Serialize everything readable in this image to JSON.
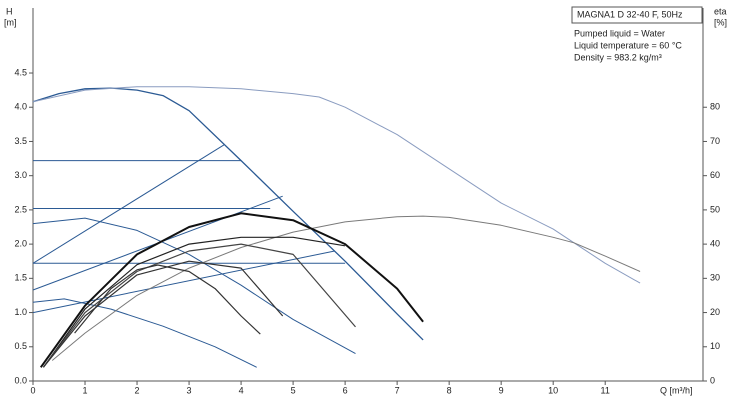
{
  "chart_data": {
    "type": "line",
    "title": "MAGNA1 D 32-40 F, 50Hz",
    "annotations": [
      "Pumped liquid = Water",
      "Liquid temperature = 60 °C",
      "Density = 983.2 kg/m³"
    ],
    "x_label": "Q [m³/h]",
    "y_label": [
      "H",
      "[m]"
    ],
    "y2_label": [
      "eta",
      "[%]"
    ],
    "xlim": [
      0,
      12.88
    ],
    "xticks": [
      0,
      1,
      2,
      3,
      4,
      5,
      6,
      7,
      8,
      9,
      10,
      11
    ],
    "ylim": [
      0,
      5.45
    ],
    "yticks": [
      {
        "value": 0,
        "label": "0.0"
      },
      0.5,
      {
        "value": 1,
        "label": "1.0"
      },
      1.5,
      {
        "value": 2,
        "label": "2.0"
      },
      2.5,
      {
        "value": 3,
        "label": "3.0"
      },
      3.5,
      {
        "value": 4,
        "label": "4.0"
      },
      4.5
    ],
    "y2lim": [
      0,
      109
    ],
    "y2ticks": [
      0,
      10,
      20,
      30,
      40,
      50,
      60,
      70,
      80
    ],
    "series": [
      {
        "color": "#2b5a94",
        "width": 1.3,
        "x": [
          0,
          0.5,
          1,
          1.5,
          2,
          2.5,
          3,
          4,
          5,
          6,
          7,
          7.5
        ],
        "values": [
          4.08,
          4.2,
          4.27,
          4.28,
          4.25,
          4.17,
          3.95,
          3.22,
          2.48,
          1.75,
          0.98,
          0.6
        ]
      },
      {
        "color": "#8a9cc0",
        "width": 1,
        "x": [
          0,
          1,
          2,
          3,
          4,
          5,
          5.5,
          6,
          7,
          8,
          9,
          10,
          10.4,
          11,
          11.67
        ],
        "values": [
          4.08,
          4.25,
          4.3,
          4.3,
          4.27,
          4.2,
          4.15,
          4.0,
          3.6,
          3.1,
          2.6,
          2.22,
          2.02,
          1.72,
          1.43
        ]
      },
      {
        "color": "#2b5a94",
        "width": 1,
        "x": [
          0,
          4
        ],
        "values": [
          3.22,
          3.22
        ]
      },
      {
        "color": "#2b5a94",
        "width": 1,
        "x": [
          0,
          4.56
        ],
        "values": [
          2.52,
          2.52
        ]
      },
      {
        "color": "#2b5a94",
        "width": 1,
        "x": [
          0,
          6
        ],
        "values": [
          1.72,
          1.72
        ]
      },
      {
        "color": "#2b5a94",
        "width": 1,
        "x": [
          0,
          3.67
        ],
        "values": [
          1.72,
          3.45
        ]
      },
      {
        "color": "#2b5a94",
        "width": 1,
        "x": [
          0,
          4.8
        ],
        "values": [
          1.33,
          2.7
        ]
      },
      {
        "color": "#2b5a94",
        "width": 1,
        "x": [
          0,
          5.8
        ],
        "values": [
          1.0,
          1.9
        ]
      },
      {
        "color": "#2b5a94",
        "width": 1,
        "x": [
          0,
          1,
          2,
          3,
          4,
          5,
          6.2
        ],
        "values": [
          2.3,
          2.38,
          2.2,
          1.85,
          1.4,
          0.9,
          0.4
        ]
      },
      {
        "color": "#2b5a94",
        "width": 1,
        "x": [
          0,
          0.6,
          1.5,
          2.5,
          3.5,
          4.3
        ],
        "values": [
          1.15,
          1.2,
          1.05,
          0.8,
          0.5,
          0.2
        ]
      },
      {
        "color": "#7a7a7a",
        "width": 1,
        "axis": "y2",
        "x": [
          0.37,
          1,
          2,
          3,
          4,
          5,
          6,
          7,
          7.5,
          8,
          9,
          10,
          10.4,
          11,
          11.67
        ],
        "values": [
          6,
          14,
          25,
          33,
          39,
          43.5,
          46.5,
          48,
          48.2,
          47.8,
          45.5,
          42,
          40.4,
          36.5,
          32
        ]
      },
      {
        "color": "#111111",
        "width": 2,
        "axis": "y2",
        "x": [
          0.15,
          1,
          2,
          3,
          4,
          5,
          6,
          7,
          7.5
        ],
        "values": [
          4,
          22,
          37,
          45,
          49,
          47,
          40,
          27,
          17.3
        ]
      },
      {
        "color": "#222222",
        "width": 1.2,
        "axis": "y2",
        "x": [
          0.2,
          1,
          2,
          3,
          4,
          5,
          6
        ],
        "values": [
          4,
          21,
          34,
          40,
          42,
          42,
          39.5
        ]
      },
      {
        "color": "#444444",
        "width": 1.2,
        "axis": "y2",
        "x": [
          0.2,
          1,
          2,
          3,
          4,
          5,
          6.2
        ],
        "values": [
          4,
          20,
          32,
          38,
          40,
          37,
          15.8
        ]
      },
      {
        "color": "#333333",
        "width": 1.2,
        "axis": "y2",
        "x": [
          0.2,
          1,
          2,
          3,
          4,
          4.8
        ],
        "values": [
          4,
          19,
          31,
          35,
          33,
          19
        ]
      },
      {
        "color": "#333333",
        "width": 1.2,
        "axis": "y2",
        "x": [
          0.8,
          1.5,
          2,
          2.4,
          3,
          3.5,
          4,
          4.37
        ],
        "values": [
          14,
          27,
          32.5,
          33.9,
          32,
          27,
          19,
          13.7
        ]
      }
    ]
  }
}
